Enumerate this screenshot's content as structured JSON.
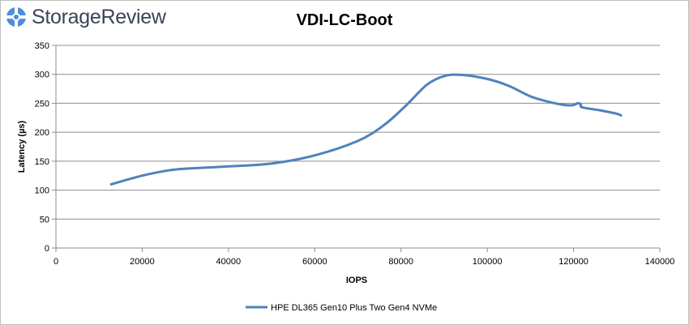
{
  "logo": {
    "text": "StorageReview"
  },
  "chart_data": {
    "type": "line",
    "title": "VDI-LC-Boot",
    "xlabel": "IOPS",
    "ylabel": "Latency (µs)",
    "xlim": [
      0,
      140000
    ],
    "ylim": [
      0,
      350
    ],
    "x_ticks": [
      0,
      20000,
      40000,
      60000,
      80000,
      100000,
      120000,
      140000
    ],
    "y_ticks": [
      0,
      50,
      100,
      150,
      200,
      250,
      300,
      350
    ],
    "grid": "horizontal",
    "legend_position": "bottom",
    "series": [
      {
        "name": "HPE DL365 Gen10 Plus Two Gen4 NVMe",
        "color": "#4f81bd",
        "points": [
          [
            12800,
            110
          ],
          [
            20000,
            125
          ],
          [
            26000,
            134
          ],
          [
            30000,
            137
          ],
          [
            40000,
            141
          ],
          [
            50000,
            146
          ],
          [
            60000,
            160
          ],
          [
            70000,
            185
          ],
          [
            76000,
            212
          ],
          [
            81000,
            245
          ],
          [
            86000,
            282
          ],
          [
            90000,
            297
          ],
          [
            94000,
            299
          ],
          [
            100000,
            292
          ],
          [
            105000,
            280
          ],
          [
            110000,
            262
          ],
          [
            114000,
            253
          ],
          [
            118000,
            247
          ],
          [
            120000,
            247
          ],
          [
            121000,
            250
          ],
          [
            121700,
            248
          ],
          [
            122000,
            243
          ],
          [
            126000,
            238
          ],
          [
            130000,
            232
          ],
          [
            131000,
            229
          ]
        ]
      }
    ]
  }
}
